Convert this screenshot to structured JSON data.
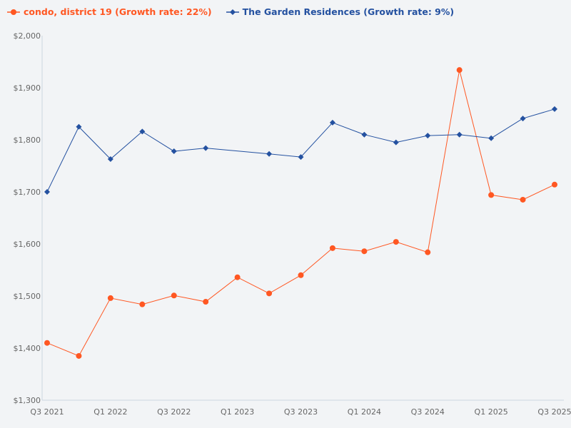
{
  "chart_data": {
    "type": "line",
    "title": "",
    "xlabel": "",
    "ylabel": "",
    "ylim": [
      1300,
      2000
    ],
    "yticks": [
      "$1,300",
      "$1,400",
      "$1,500",
      "$1,600",
      "$1,700",
      "$1,800",
      "$1,900",
      "$2,000"
    ],
    "ytick_values": [
      1300,
      1400,
      1500,
      1600,
      1700,
      1800,
      1900,
      2000
    ],
    "categories": [
      "Q3 2021",
      "Q4 2021",
      "Q1 2022",
      "Q2 2022",
      "Q3 2022",
      "Q4 2022",
      "Q1 2023",
      "Q2 2023",
      "Q3 2023",
      "Q4 2023",
      "Q1 2024",
      "Q2 2024",
      "Q3 2024",
      "Q4 2024",
      "Q1 2025",
      "Q2 2025",
      "Q3 2025"
    ],
    "xtick_labels": [
      "Q3 2021",
      "Q1 2022",
      "Q3 2022",
      "Q1 2023",
      "Q3 2023",
      "Q1 2024",
      "Q3 2024",
      "Q1 2025",
      "Q3 2025"
    ],
    "grid": false,
    "legend_position": "top-left",
    "series": [
      {
        "name": "condo, district 19 (Growth rate: 22%)",
        "color": "#ff5722",
        "marker": "circle",
        "values": [
          1410,
          1385,
          1496,
          1484,
          1501,
          1489,
          1536,
          1505,
          1540,
          1592,
          1586,
          1604,
          1584,
          1934,
          1694,
          1685,
          1714
        ]
      },
      {
        "name": "The Garden Residences (Growth rate: 9%)",
        "color": "#2451a0",
        "marker": "diamond",
        "values": [
          1700,
          1825,
          1763,
          1816,
          1778,
          1784,
          null,
          1773,
          1767,
          1833,
          1810,
          1795,
          1808,
          1810,
          1803,
          1841,
          1859
        ]
      }
    ]
  }
}
